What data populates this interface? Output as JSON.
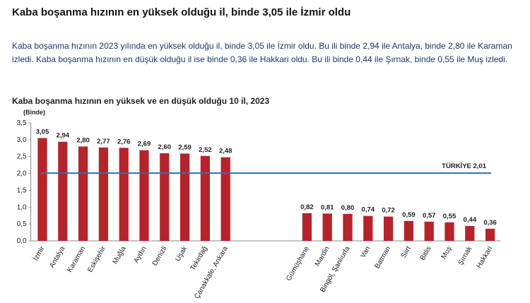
{
  "header": {
    "title": "Kaba boşanma hızının en yüksek olduğu il, binde 3,05 ile İzmir oldu"
  },
  "paragraph": "Kaba boşanma hızının 2023 yılında en yüksek olduğu il, binde 3,05 ile İzmir oldu. Bu ili binde 2,94 ile Antalya, binde 2,80 ile Karaman izledi. Kaba boşanma hızının en düşük olduğu il ise binde 0,36 ile Hakkari oldu. Bu ili binde 0,44 ile Şırnak, binde 0,55 ile Muş izledi.",
  "chart_data": {
    "type": "bar",
    "title": "Kaba boşanma hızının en yüksek ve en düşük olduğu 10 il, 2023",
    "y_label": "(Binde)",
    "categories": [
      "İzmir",
      "Antalya",
      "Karaman",
      "Eskişehir",
      "Muğla",
      "Aydın",
      "Denizli",
      "Uşak",
      "Tekirdağ",
      "Çanakkale, Ankara",
      null,
      null,
      null,
      "Gümüşhane",
      "Mardin",
      "Bingöl, Şanlıurfa",
      "Van",
      "Batman",
      "Siirt",
      "Bitlis",
      "Muş",
      "Şırnak",
      "Hakkari"
    ],
    "values": [
      3.05,
      2.94,
      2.8,
      2.77,
      2.76,
      2.69,
      2.6,
      2.59,
      2.52,
      2.48,
      null,
      null,
      null,
      0.82,
      0.81,
      0.8,
      0.74,
      0.72,
      0.59,
      0.57,
      0.55,
      0.44,
      0.36
    ],
    "value_labels": [
      "3,05",
      "2,94",
      "2,80",
      "2,77",
      "2,76",
      "2,69",
      "2,60",
      "2,59",
      "2,52",
      "2,48",
      null,
      null,
      null,
      "0,82",
      "0,81",
      "0,80",
      "0,74",
      "0,72",
      "0,59",
      "0,57",
      "0,55",
      "0,44",
      "0,36"
    ],
    "color": "#b5242a",
    "ylim": [
      0,
      3.5
    ],
    "yticks": [
      {
        "value": 0,
        "label": "0,0"
      },
      {
        "value": 0.5,
        "label": "0,5"
      },
      {
        "value": 1,
        "label": "1,0"
      },
      {
        "value": 1.5,
        "label": "1,5"
      },
      {
        "value": 2,
        "label": "2,0"
      },
      {
        "value": 2.5,
        "label": "2,5"
      },
      {
        "value": 3,
        "label": "3,0"
      },
      {
        "value": 3.5,
        "label": "3,5"
      }
    ],
    "reference_line": {
      "value": 2.01,
      "label": "TÜRKİYE 2,01",
      "color": "#2f6db5"
    }
  }
}
